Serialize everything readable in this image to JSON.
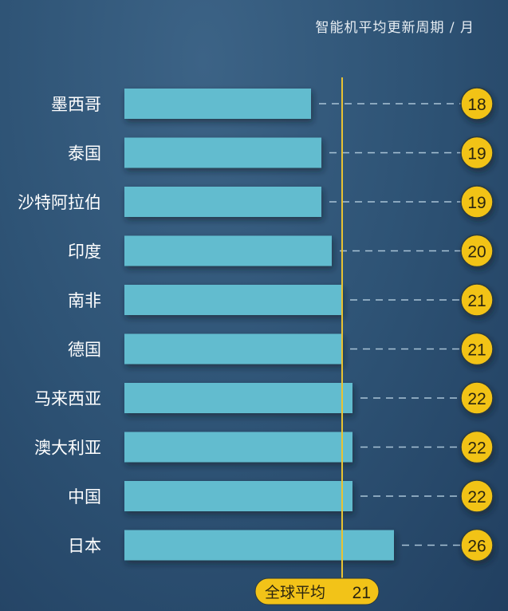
{
  "chart_data": {
    "type": "bar",
    "orientation": "horizontal",
    "title": "智能机平均更新周期 / 月",
    "categories": [
      "墨西哥",
      "泰国",
      "沙特阿拉伯",
      "印度",
      "南非",
      "德国",
      "马来西亚",
      "澳大利亚",
      "中国",
      "日本"
    ],
    "values": [
      18,
      19,
      19,
      20,
      21,
      21,
      22,
      22,
      22,
      26
    ],
    "xlim": [
      0,
      26
    ],
    "grid": false,
    "reference_line": {
      "label": "全球平均",
      "value": 21
    },
    "colors": {
      "bar": "#62bccf",
      "badge": "#f2c318",
      "reference": "#e9c232",
      "dash": "#a9c3d6"
    }
  }
}
